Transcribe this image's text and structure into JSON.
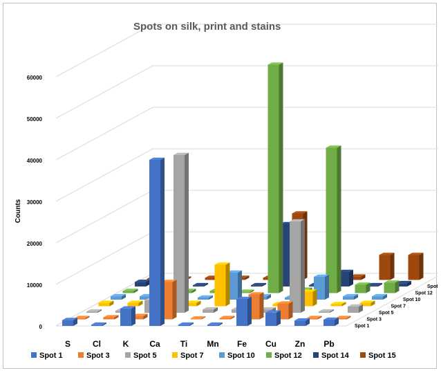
{
  "chart_data": {
    "type": "bar",
    "title": "Spots on silk, print and stains",
    "xlabel": "",
    "ylabel": "Counts",
    "ylim": [
      0,
      60000
    ],
    "yticks": [
      "0",
      "10000",
      "20000",
      "30000",
      "40000",
      "50000",
      "60000"
    ],
    "categories": [
      "S",
      "Cl",
      "K",
      "Ca",
      "Ti",
      "Mn",
      "Fe",
      "Cu",
      "Zn",
      "Pb"
    ],
    "grid": true,
    "legend_position": "bottom",
    "series": [
      {
        "name": "Spot 1",
        "color": "#4472c4",
        "values": [
          1400,
          300,
          4200,
          40000,
          300,
          300,
          6500,
          3200,
          1300,
          1500
        ]
      },
      {
        "name": "Spot 3",
        "color": "#ed7d31",
        "values": [
          300,
          500,
          800,
          9000,
          200,
          300,
          6000,
          3800,
          300,
          300
        ]
      },
      {
        "name": "Spot 5",
        "color": "#a5a5a5",
        "values": [
          300,
          500,
          3000,
          38000,
          800,
          800,
          800,
          22000,
          300,
          1500
        ]
      },
      {
        "name": "Spot 7",
        "color": "#ffc000",
        "values": [
          800,
          800,
          500,
          800,
          10000,
          500,
          500,
          3500,
          500,
          800
        ]
      },
      {
        "name": "Spot 10",
        "color": "#5b9bd5",
        "values": [
          800,
          800,
          800,
          500,
          6500,
          800,
          500,
          5500,
          800,
          800
        ]
      },
      {
        "name": "Spot 12",
        "color": "#70ad47",
        "values": [
          500,
          300,
          500,
          500,
          300,
          55000,
          800,
          35000,
          2000,
          2500
        ]
      },
      {
        "name": "Spot 14",
        "color": "#264478",
        "values": [
          1100,
          300,
          300,
          300,
          300,
          15000,
          300,
          3500,
          300,
          800
        ]
      },
      {
        "name": "Spot 15",
        "color": "#9e480e",
        "values": [
          300,
          300,
          500,
          500,
          500,
          16000,
          500,
          800,
          6000,
          6000
        ]
      }
    ],
    "depth_labels": [
      "Spot 1",
      "Spot 3",
      "Spot 5",
      "Spot 7",
      "Spot 10",
      "Spot 12",
      "Spot 14",
      "Spot 15"
    ]
  }
}
